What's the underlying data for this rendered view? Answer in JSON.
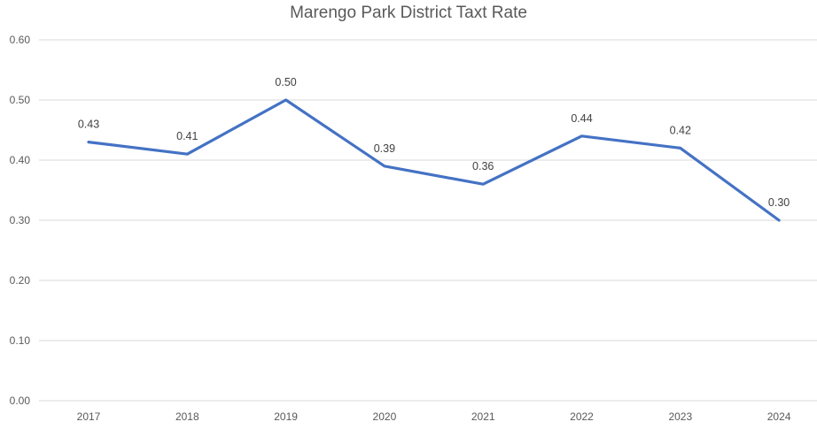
{
  "chart_data": {
    "type": "line",
    "title": "Marengo Park District Taxt Rate",
    "xlabel": "",
    "ylabel": "",
    "categories": [
      "2017",
      "2018",
      "2019",
      "2020",
      "2021",
      "2022",
      "2023",
      "2024"
    ],
    "series": [
      {
        "values": [
          0.43,
          0.41,
          0.5,
          0.39,
          0.36,
          0.44,
          0.42,
          0.3
        ],
        "color": "#4472c4"
      }
    ],
    "data_labels": [
      "0.43",
      "0.41",
      "0.50",
      "0.39",
      "0.36",
      "0.44",
      "0.42",
      "0.30"
    ],
    "ylim": [
      0,
      0.6
    ],
    "yticks": [
      "0.00",
      "0.10",
      "0.20",
      "0.30",
      "0.40",
      "0.50",
      "0.60"
    ],
    "grid": true,
    "legend": "none"
  }
}
